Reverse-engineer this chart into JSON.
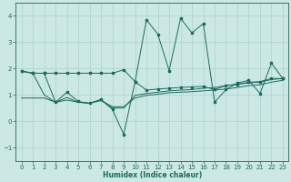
{
  "x": [
    0,
    1,
    2,
    3,
    4,
    5,
    6,
    7,
    8,
    9,
    10,
    11,
    12,
    13,
    14,
    15,
    16,
    17,
    18,
    19,
    20,
    21,
    22,
    23
  ],
  "line1_y": [
    1.9,
    1.82,
    1.82,
    0.72,
    1.1,
    0.75,
    0.68,
    0.82,
    0.45,
    -0.5,
    1.5,
    3.85,
    3.3,
    1.92,
    3.9,
    3.35,
    3.7,
    0.72,
    1.2,
    1.45,
    1.55,
    1.05,
    2.2,
    1.62
  ],
  "line2_y": [
    1.9,
    1.82,
    1.82,
    1.82,
    1.82,
    1.82,
    1.82,
    1.82,
    1.82,
    1.95,
    1.5,
    1.18,
    1.22,
    1.25,
    1.28,
    1.3,
    1.32,
    1.2,
    1.35,
    1.4,
    1.48,
    1.5,
    1.62,
    1.62
  ],
  "line3_y": [
    0.88,
    0.88,
    0.88,
    0.72,
    0.8,
    0.72,
    0.68,
    0.78,
    0.55,
    0.55,
    0.88,
    0.98,
    1.02,
    1.08,
    1.1,
    1.12,
    1.15,
    1.18,
    1.22,
    1.28,
    1.35,
    1.38,
    1.48,
    1.55
  ],
  "line4_y": [
    1.9,
    1.82,
    1.0,
    0.72,
    0.9,
    0.72,
    0.68,
    0.82,
    0.5,
    0.5,
    0.98,
    1.05,
    1.1,
    1.15,
    1.18,
    1.2,
    1.25,
    1.28,
    1.35,
    1.4,
    1.45,
    1.48,
    1.58,
    1.62
  ],
  "color": "#1a6b5e",
  "bg_color": "#cce8e4",
  "grid_color": "#aed0cc",
  "xlabel": "Humidex (Indice chaleur)",
  "ylim": [
    -1.5,
    4.5
  ],
  "xlim": [
    -0.5,
    23.5
  ],
  "yticks": [
    -1,
    0,
    1,
    2,
    3,
    4
  ],
  "xticks": [
    0,
    1,
    2,
    3,
    4,
    5,
    6,
    7,
    8,
    9,
    10,
    11,
    12,
    13,
    14,
    15,
    16,
    17,
    18,
    19,
    20,
    21,
    22,
    23
  ]
}
